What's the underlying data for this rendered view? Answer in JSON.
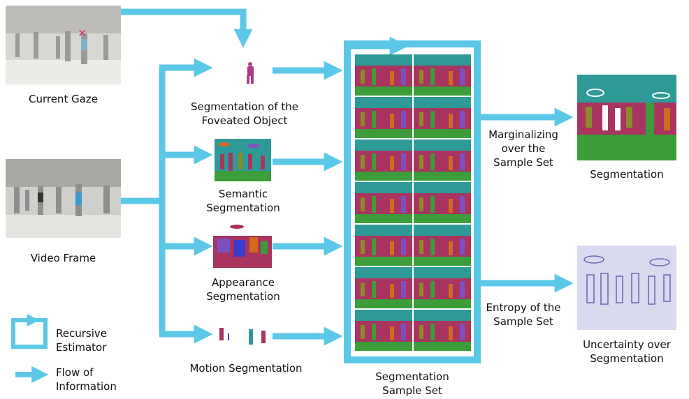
{
  "colors": {
    "arrow": "#5bc8e8",
    "seg_teal": "#2e9a98",
    "seg_magenta": "#a8345f",
    "seg_green": "#3c9d3a",
    "seg_purple": "#7d52c0",
    "seg_olive": "#8a8a2a",
    "seg_orange": "#d46a1f",
    "uncert_bg": "#d9d9f0",
    "uncert_fg": "#5a4fa8"
  },
  "inputs": {
    "gaze_label": "Current Gaze",
    "frame_label": "Video Frame",
    "gaze_marker": "✕"
  },
  "modules": {
    "foveated_label": "Segmentation of the\nFoveated Object",
    "semantic_label": "Semantic\nSegmentation",
    "appearance_label": "Appearance\nSegmentation",
    "motion_label": "Motion Segmentation"
  },
  "sample_set": {
    "label": "Segmentation\nSample Set"
  },
  "outputs": {
    "marginal_label": "Marginalizing\nover the\nSample Set",
    "segmentation_label": "Segmentation",
    "entropy_label": "Entropy of the\nSample Set",
    "uncertainty_label": "Uncertainty over\nSegmentation"
  },
  "legend": {
    "recursive_label": "Recursive\nEstimator",
    "flow_label": "Flow of\nInformation"
  }
}
